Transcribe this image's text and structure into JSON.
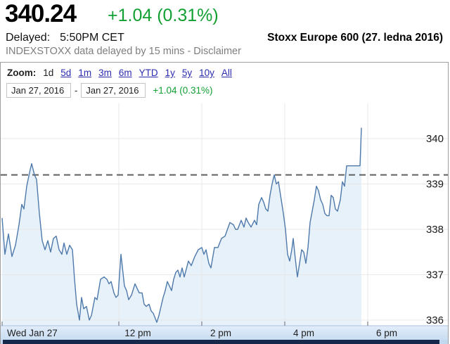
{
  "header": {
    "price": "340.24",
    "change": "+1.04 (0.31%)",
    "delayed_label": "Delayed:",
    "delayed_time": "5:50PM CET",
    "delay_note": "INDEXSTOXX data delayed by 15 mins -",
    "disclaimer": "Disclaimer",
    "instrument_title": "Stoxx Europe 600 (27. ledna 2016)"
  },
  "toolbar": {
    "zoom_label": "Zoom:",
    "ranges": [
      "1d",
      "5d",
      "1m",
      "3m",
      "6m",
      "YTD",
      "1y",
      "5y",
      "10y",
      "All"
    ],
    "selected_range": "1d",
    "date_from": "Jan 27, 2016",
    "date_separator": "-",
    "date_to": "Jan 27, 2016",
    "change": "+1.04 (0.31%)"
  },
  "colors": {
    "green": "#12a033",
    "link": "#2b2bb0",
    "line": "#4e79ab",
    "fill": "#e7f1fa",
    "grid": "#e7e7e7",
    "prev_close": "#5f5f5f",
    "axis_band_top": "#e2edfa",
    "axis_band_bottom": "#c9ddf2",
    "scrollbar": "#16294a",
    "scrollbar_cap": "#c2d8ee",
    "axis_text": "#1a1a1a"
  },
  "chart_data": {
    "type": "area",
    "title": "Stoxx Europe 600 intraday, Jan 27 2016 (times CET)",
    "xlabel": "",
    "ylabel": "",
    "y_ticks": [
      336,
      337,
      338,
      339,
      340
    ],
    "ylim": [
      335.7,
      340.55
    ],
    "x_hour_gridlines": [
      12,
      14,
      16,
      18
    ],
    "x_ticks": [
      {
        "label": "Wed Jan 27",
        "hour": null
      },
      {
        "label": "12 pm",
        "hour": 12
      },
      {
        "label": "2 pm",
        "hour": 14
      },
      {
        "label": "4 pm",
        "hour": 16
      },
      {
        "label": "6 pm",
        "hour": 18
      }
    ],
    "previous_close": 339.2,
    "last_price": 340.24,
    "grid": true,
    "legend": "none",
    "series": [
      {
        "name": "Stoxx Europe 600",
        "points": [
          [
            9.186,
            338.25
          ],
          [
            9.254,
            337.45
          ],
          [
            9.339,
            337.9
          ],
          [
            9.424,
            337.4
          ],
          [
            9.508,
            337.65
          ],
          [
            9.593,
            338.1
          ],
          [
            9.661,
            338.55
          ],
          [
            9.712,
            338.45
          ],
          [
            9.78,
            338.95
          ],
          [
            9.847,
            339.25
          ],
          [
            9.898,
            339.45
          ],
          [
            9.966,
            339.2
          ],
          [
            10.017,
            339.1
          ],
          [
            10.085,
            338.35
          ],
          [
            10.153,
            337.75
          ],
          [
            10.22,
            337.55
          ],
          [
            10.288,
            337.75
          ],
          [
            10.356,
            337.5
          ],
          [
            10.424,
            337.8
          ],
          [
            10.492,
            337.85
          ],
          [
            10.559,
            337.55
          ],
          [
            10.627,
            337.45
          ],
          [
            10.678,
            337.7
          ],
          [
            10.746,
            337.45
          ],
          [
            10.814,
            337.65
          ],
          [
            10.881,
            337.55
          ],
          [
            10.932,
            336.9
          ],
          [
            10.983,
            336.35
          ],
          [
            11.051,
            336.0
          ],
          [
            11.102,
            336.5
          ],
          [
            11.153,
            336.25
          ],
          [
            11.22,
            336.3
          ],
          [
            11.288,
            336.0
          ],
          [
            11.339,
            336.1
          ],
          [
            11.424,
            336.5
          ],
          [
            11.475,
            336.45
          ],
          [
            11.559,
            336.9
          ],
          [
            11.644,
            336.95
          ],
          [
            11.712,
            336.9
          ],
          [
            11.763,
            336.8
          ],
          [
            11.814,
            336.85
          ],
          [
            11.881,
            336.6
          ],
          [
            11.932,
            336.5
          ],
          [
            11.983,
            336.55
          ],
          [
            12.051,
            337.45
          ],
          [
            12.136,
            336.75
          ],
          [
            12.186,
            336.65
          ],
          [
            12.237,
            336.45
          ],
          [
            12.305,
            336.55
          ],
          [
            12.39,
            336.8
          ],
          [
            12.441,
            336.7
          ],
          [
            12.492,
            336.6
          ],
          [
            12.559,
            336.6
          ],
          [
            12.61,
            336.35
          ],
          [
            12.661,
            336.3
          ],
          [
            12.729,
            336.35
          ],
          [
            12.78,
            336.2
          ],
          [
            12.831,
            336.15
          ],
          [
            12.915,
            335.95
          ],
          [
            12.966,
            336.1
          ],
          [
            13.017,
            336.3
          ],
          [
            13.068,
            336.5
          ],
          [
            13.119,
            336.65
          ],
          [
            13.169,
            336.85
          ],
          [
            13.22,
            336.75
          ],
          [
            13.271,
            336.65
          ],
          [
            13.322,
            336.9
          ],
          [
            13.373,
            337.05
          ],
          [
            13.424,
            337.1
          ],
          [
            13.475,
            336.95
          ],
          [
            13.525,
            337.15
          ],
          [
            13.576,
            336.95
          ],
          [
            13.678,
            337.3
          ],
          [
            13.746,
            337.2
          ],
          [
            13.831,
            337.4
          ],
          [
            13.915,
            337.55
          ],
          [
            14.0,
            337.6
          ],
          [
            14.051,
            337.45
          ],
          [
            14.102,
            337.55
          ],
          [
            14.169,
            337.25
          ],
          [
            14.22,
            337.15
          ],
          [
            14.305,
            337.6
          ],
          [
            14.39,
            337.6
          ],
          [
            14.475,
            337.8
          ],
          [
            14.559,
            337.85
          ],
          [
            14.678,
            338.15
          ],
          [
            14.763,
            338.1
          ],
          [
            14.814,
            338.0
          ],
          [
            14.864,
            338.0
          ],
          [
            14.949,
            338.2
          ],
          [
            15.017,
            338.05
          ],
          [
            15.068,
            338.25
          ],
          [
            15.119,
            338.15
          ],
          [
            15.186,
            338.05
          ],
          [
            15.271,
            338.2
          ],
          [
            15.322,
            338.1
          ],
          [
            15.373,
            338.55
          ],
          [
            15.441,
            338.7
          ],
          [
            15.492,
            338.6
          ],
          [
            15.542,
            338.45
          ],
          [
            15.593,
            338.4
          ],
          [
            15.644,
            338.75
          ],
          [
            15.695,
            339.0
          ],
          [
            15.746,
            339.2
          ],
          [
            15.797,
            339.0
          ],
          [
            15.847,
            339.05
          ],
          [
            15.915,
            338.65
          ],
          [
            15.966,
            338.35
          ],
          [
            16.017,
            338.0
          ],
          [
            16.068,
            337.45
          ],
          [
            16.119,
            337.3
          ],
          [
            16.169,
            337.55
          ],
          [
            16.203,
            337.8
          ],
          [
            16.254,
            337.35
          ],
          [
            16.305,
            336.95
          ],
          [
            16.356,
            337.25
          ],
          [
            16.407,
            337.55
          ],
          [
            16.458,
            337.5
          ],
          [
            16.508,
            337.25
          ],
          [
            16.559,
            337.6
          ],
          [
            16.61,
            338.15
          ],
          [
            16.661,
            338.4
          ],
          [
            16.712,
            338.65
          ],
          [
            16.763,
            338.95
          ],
          [
            16.814,
            338.85
          ],
          [
            16.864,
            338.65
          ],
          [
            16.915,
            338.55
          ],
          [
            16.966,
            338.35
          ],
          [
            17.017,
            338.3
          ],
          [
            17.068,
            338.3
          ],
          [
            17.119,
            338.75
          ],
          [
            17.169,
            338.7
          ],
          [
            17.22,
            338.45
          ],
          [
            17.271,
            338.4
          ],
          [
            17.339,
            338.65
          ],
          [
            17.39,
            339.05
          ],
          [
            17.441,
            338.95
          ],
          [
            17.492,
            339.4
          ],
          [
            17.814,
            339.4
          ],
          [
            17.847,
            340.24
          ]
        ]
      }
    ]
  }
}
